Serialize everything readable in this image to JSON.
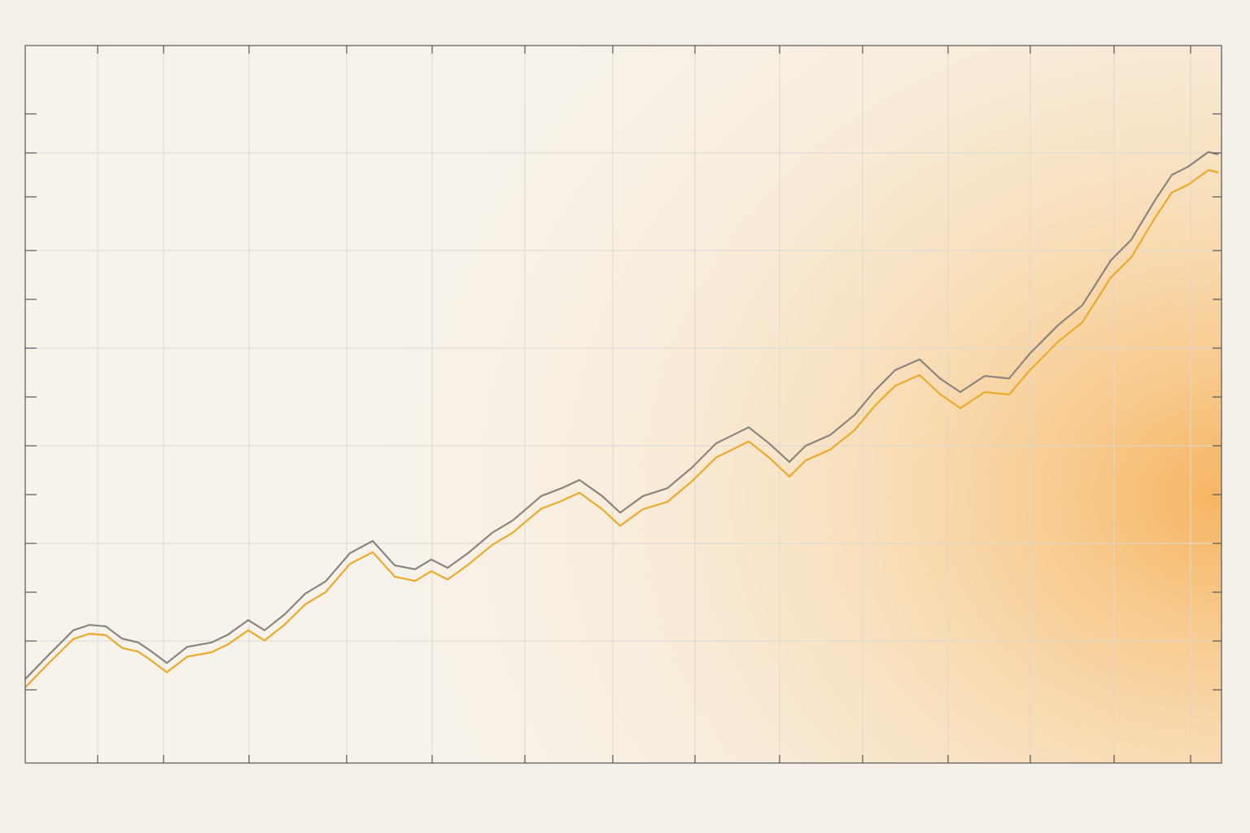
{
  "chart_data": {
    "type": "line",
    "x": [
      0,
      2.9,
      5.9,
      7.9,
      9.9,
      11.9,
      13.9,
      15.4,
      17.4,
      19.9,
      22.9,
      24.9,
      27.4,
      29.4,
      31.9,
      34.4,
      36.9,
      39.9,
      42.7,
      45.4,
      47.9,
      49.9,
      51.9,
      54.4,
      57.4,
      59.9,
      63.4,
      65.9,
      68.1,
      70.9,
      73.1,
      75.9,
      78.9,
      81.9,
      84.9,
      88.9,
      91.4,
      93.9,
      95.9,
      98.9,
      101.9,
      104.4,
      106.9,
      109.9,
      112.4,
      114.9,
      117.9,
      120.9,
      123.4,
      126.9,
      129.9,
      133.4,
      135.9,
      138.9,
      140.9,
      142.9,
      145.4,
      146.6
    ],
    "series": [
      {
        "color": "#8a8580",
        "values": [
          1.72,
          2.22,
          2.72,
          2.83,
          2.8,
          2.55,
          2.47,
          2.3,
          2.05,
          2.38,
          2.47,
          2.63,
          2.93,
          2.72,
          3.05,
          3.47,
          3.72,
          4.3,
          4.55,
          4.05,
          3.97,
          4.17,
          4.0,
          4.3,
          4.72,
          4.97,
          5.47,
          5.63,
          5.8,
          5.47,
          5.13,
          5.47,
          5.63,
          6.05,
          6.55,
          6.88,
          6.55,
          6.17,
          6.5,
          6.72,
          7.13,
          7.63,
          8.05,
          8.27,
          7.88,
          7.6,
          7.93,
          7.88,
          8.38,
          8.97,
          9.38,
          10.3,
          10.72,
          11.55,
          12.05,
          12.22,
          12.52,
          12.47
        ]
      },
      {
        "color": "#eda92a",
        "values": [
          1.55,
          2.05,
          2.54,
          2.65,
          2.62,
          2.36,
          2.28,
          2.11,
          1.86,
          2.18,
          2.27,
          2.43,
          2.72,
          2.51,
          2.84,
          3.25,
          3.5,
          4.08,
          4.32,
          3.82,
          3.73,
          3.93,
          3.76,
          4.06,
          4.47,
          4.72,
          5.21,
          5.37,
          5.54,
          5.2,
          4.86,
          5.2,
          5.35,
          5.77,
          6.26,
          6.59,
          6.26,
          5.87,
          6.2,
          6.42,
          6.82,
          7.32,
          7.73,
          7.95,
          7.56,
          7.27,
          7.6,
          7.55,
          8.04,
          8.63,
          9.03,
          9.95,
          10.36,
          11.19,
          11.69,
          11.85,
          12.15,
          12.1
        ]
      }
    ],
    "xlim": [
      0,
      147
    ],
    "xticks": [
      8.9,
      17,
      27.5,
      39.5,
      50,
      61.4,
      72.2,
      82.3,
      92.7,
      102.9,
      113.4,
      123.5,
      133.8,
      143.2
    ],
    "ylim": [
      0,
      14.7
    ],
    "yticks": [
      1.5,
      2.5,
      3.5,
      4.5,
      5.5,
      6.5,
      7.5,
      8.5,
      9.5,
      10.5,
      11.6,
      12.5,
      13.3
    ],
    "ygrid": [
      2.5,
      4.5,
      6.5,
      8.5,
      10.5,
      12.5
    ],
    "grid": true
  }
}
